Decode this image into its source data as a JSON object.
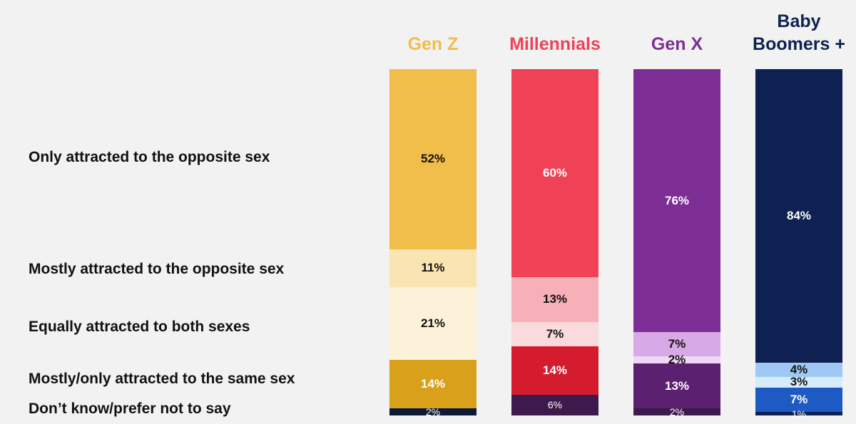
{
  "chart_data": {
    "type": "bar",
    "stacked": true,
    "normalized_to": 100,
    "categories": [
      "Gen Z",
      "Millennials",
      "Gen X",
      "Baby Boomers +"
    ],
    "category_lines": [
      [
        "Gen Z"
      ],
      [
        "Millennials"
      ],
      [
        "Gen X"
      ],
      [
        "Baby",
        "Boomers +"
      ]
    ],
    "category_colors": [
      "#f1bd4b",
      "#ef4256",
      "#7c2e95",
      "#0e2152"
    ],
    "series": [
      {
        "name": "Only attracted to the opposite sex",
        "values": [
          52,
          60,
          76,
          84
        ],
        "labels": [
          "52%",
          "60%",
          "76%",
          "84%"
        ],
        "colors": [
          "#f1bd4b",
          "#ef4256",
          "#7c2e95",
          "#0e2152"
        ],
        "label_colors": [
          "#111111",
          "#ffffff",
          "#ffffff",
          "#ffffff"
        ]
      },
      {
        "name": "Mostly attracted to the opposite sex",
        "values": [
          11,
          13,
          7,
          4
        ],
        "labels": [
          "11%",
          "13%",
          "7%",
          "4%"
        ],
        "colors": [
          "#fae4b2",
          "#f7b0b8",
          "#d7a9e6",
          "#9fc9f4"
        ],
        "label_colors": [
          "#111111",
          "#111111",
          "#111111",
          "#111111"
        ]
      },
      {
        "name": "Equally attracted to both sexes",
        "values": [
          21,
          7,
          2,
          3
        ],
        "labels": [
          "21%",
          "7%",
          "2%",
          "3%"
        ],
        "colors": [
          "#fcf2d9",
          "#fadadd",
          "#f0d7f5",
          "#d6ecfa"
        ],
        "label_colors": [
          "#111111",
          "#111111",
          "#111111",
          "#111111"
        ]
      },
      {
        "name": "Mostly/only attracted to the same sex",
        "values": [
          14,
          14,
          13,
          7
        ],
        "labels": [
          "14%",
          "14%",
          "13%",
          "7%"
        ],
        "colors": [
          "#d9a01b",
          "#d51b2e",
          "#5c2070",
          "#1e5ac4"
        ],
        "label_colors": [
          "#ffffff",
          "#ffffff",
          "#ffffff",
          "#ffffff"
        ]
      },
      {
        "name": "Don’t know/prefer not to say",
        "values": [
          2,
          6,
          2,
          1
        ],
        "labels": [
          "2%",
          "6%",
          "2%",
          "1%"
        ],
        "colors": [
          "#0c1a38",
          "#3d1a4c",
          "#3d1a4c",
          "#0e2152"
        ],
        "label_colors": [
          "#ffffff",
          "#ffffff",
          "#ffffff",
          "#ffffff"
        ]
      }
    ]
  }
}
